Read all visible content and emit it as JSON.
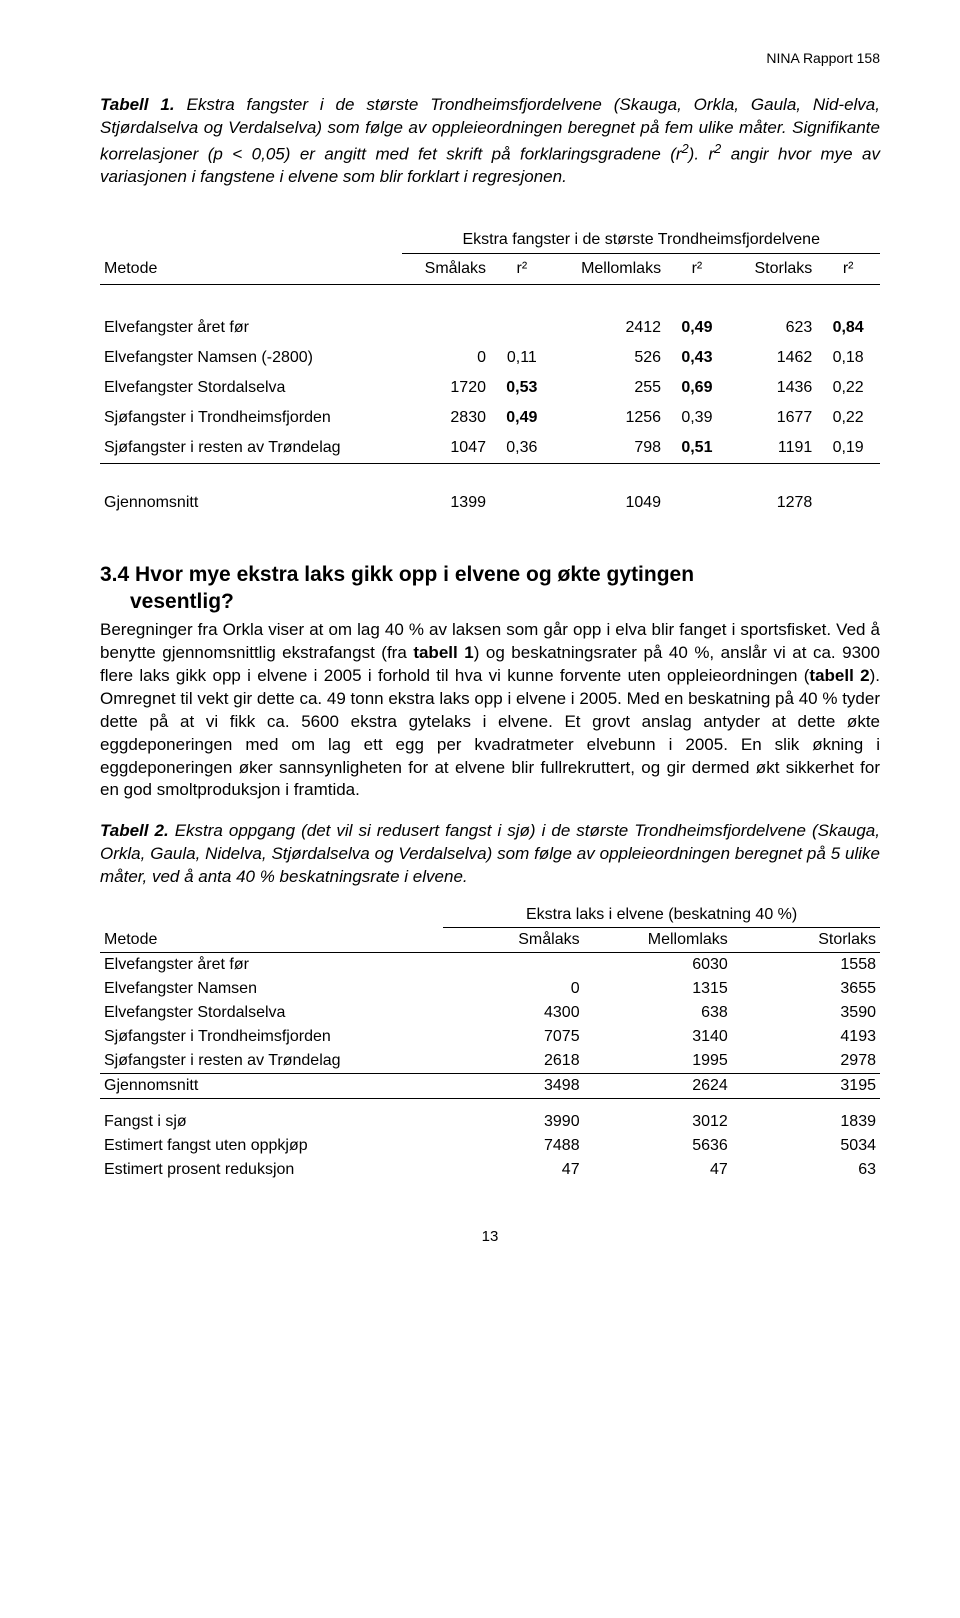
{
  "header": {
    "report_label": "NINA Rapport 158"
  },
  "caption1": {
    "label": "Tabell 1.",
    "text_a": " Ekstra fangster i de største Trondheimsfjordelvene (Skauga, Orkla, Gaula, Nid-elva, Stjørdalselva og Verdalselva) som følge av oppleieordningen beregnet på fem ulike måter. Signifikante korrelasjoner (p < 0,05) er angitt med fet skrift på forklaringsgradene (r",
    "sup1": "2",
    "text_b": "). r",
    "sup2": "2",
    "text_c": " angir hvor mye av variasjonen i fangstene i elvene som blir forklart i regresjonen."
  },
  "table1": {
    "spanner": "Ekstra fangster i de største Trondheimsfjordelvene",
    "colhead": {
      "method": "Metode",
      "smalaks": "Smålaks",
      "r2a": "r²",
      "mellom": "Mellomlaks",
      "r2b": "r²",
      "stor": "Storlaks",
      "r2c": "r²"
    },
    "rows": [
      {
        "m": "Elvefangster året før",
        "c1": "",
        "c2": "",
        "c3": "2412",
        "c4": "0,49",
        "c5": "623",
        "c6": "0,84",
        "b2": false,
        "b4": true,
        "b6": true
      },
      {
        "m": "Elvefangster Namsen (-2800)",
        "c1": "0",
        "c2": "0,11",
        "c3": "526",
        "c4": "0,43",
        "c5": "1462",
        "c6": "0,18",
        "b2": false,
        "b4": true,
        "b6": false
      },
      {
        "m": "Elvefangster Stordalselva",
        "c1": "1720",
        "c2": "0,53",
        "c3": "255",
        "c4": "0,69",
        "c5": "1436",
        "c6": "0,22",
        "b2": true,
        "b4": true,
        "b6": false
      },
      {
        "m": "Sjøfangster i Trondheimsfjorden",
        "c1": "2830",
        "c2": "0,49",
        "c3": "1256",
        "c4": "0,39",
        "c5": "1677",
        "c6": "0,22",
        "b2": true,
        "b4": false,
        "b6": false
      },
      {
        "m": "Sjøfangster i resten av Trøndelag",
        "c1": "1047",
        "c2": "0,36",
        "c3": "798",
        "c4": "0,51",
        "c5": "1191",
        "c6": "0,19",
        "b2": false,
        "b4": true,
        "b6": false
      }
    ],
    "gjen": {
      "label": "Gjennomsnitt",
      "c1": "1399",
      "c3": "1049",
      "c5": "1278"
    }
  },
  "section34": {
    "num": "3.4 ",
    "title_a": "Hvor mye ekstra laks gikk opp i elvene og økte gytingen",
    "title_b": "vesentlig?",
    "body_a": "Beregninger fra Orkla viser at om lag 40 % av laksen som går opp i elva blir fanget i sportsfisket. Ved å benytte gjennomsnittlig ekstrafangst (fra ",
    "body_b": "tabell 1",
    "body_c": ") og beskatningsrater på 40 %, anslår vi at ca. 9300 flere laks gikk opp i elvene i 2005 i forhold til hva vi kunne forvente uten oppleieordningen (",
    "body_d": "tabell 2",
    "body_e": "). Omregnet til vekt gir dette ca. 49 tonn ekstra laks opp i elvene i 2005. Med en beskatning på 40 % tyder dette på at vi fikk ca. 5600 ekstra gytelaks i elvene. Et grovt anslag antyder at dette økte eggdeponeringen med om lag ett egg per kvadratmeter elvebunn i 2005. En slik økning i eggdeponeringen øker sannsynligheten for at elvene blir fullrekruttert, og gir dermed økt sikkerhet for en god smoltproduksjon i framtida."
  },
  "caption2": {
    "label": "Tabell 2.",
    "text": " Ekstra oppgang (det vil si redusert fangst i sjø) i de største Trondheimsfjordelvene (Skauga, Orkla, Gaula, Nidelva, Stjørdalselva og Verdalselva) som følge av oppleieordningen beregnet på 5 ulike måter, ved å anta 40 % beskatningsrate i elvene."
  },
  "table2": {
    "spanner": "Ekstra laks i elvene (beskatning 40 %)",
    "colhead": {
      "method": "Metode",
      "smalaks": "Smålaks",
      "mellom": "Mellomlaks",
      "stor": "Storlaks"
    },
    "rows": [
      {
        "m": "Elvefangster året før",
        "c1": "",
        "c2": "6030",
        "c3": "1558"
      },
      {
        "m": "Elvefangster Namsen",
        "c1": "0",
        "c2": "1315",
        "c3": "3655"
      },
      {
        "m": "Elvefangster Stordalselva",
        "c1": "4300",
        "c2": "638",
        "c3": "3590"
      },
      {
        "m": "Sjøfangster i Trondheimsfjorden",
        "c1": "7075",
        "c2": "3140",
        "c3": "4193"
      },
      {
        "m": "Sjøfangster i resten av Trøndelag",
        "c1": "2618",
        "c2": "1995",
        "c3": "2978"
      }
    ],
    "gjen": {
      "label": "Gjennomsnitt",
      "c1": "3498",
      "c2": "2624",
      "c3": "3195"
    },
    "extra": [
      {
        "m": "Fangst i sjø",
        "c1": "3990",
        "c2": "3012",
        "c3": "1839"
      },
      {
        "m": "Estimert fangst uten oppkjøp",
        "c1": "7488",
        "c2": "5636",
        "c3": "5034"
      },
      {
        "m": "Estimert prosent reduksjon",
        "c1": "47",
        "c2": "47",
        "c3": "63"
      }
    ]
  },
  "page_number": "13"
}
